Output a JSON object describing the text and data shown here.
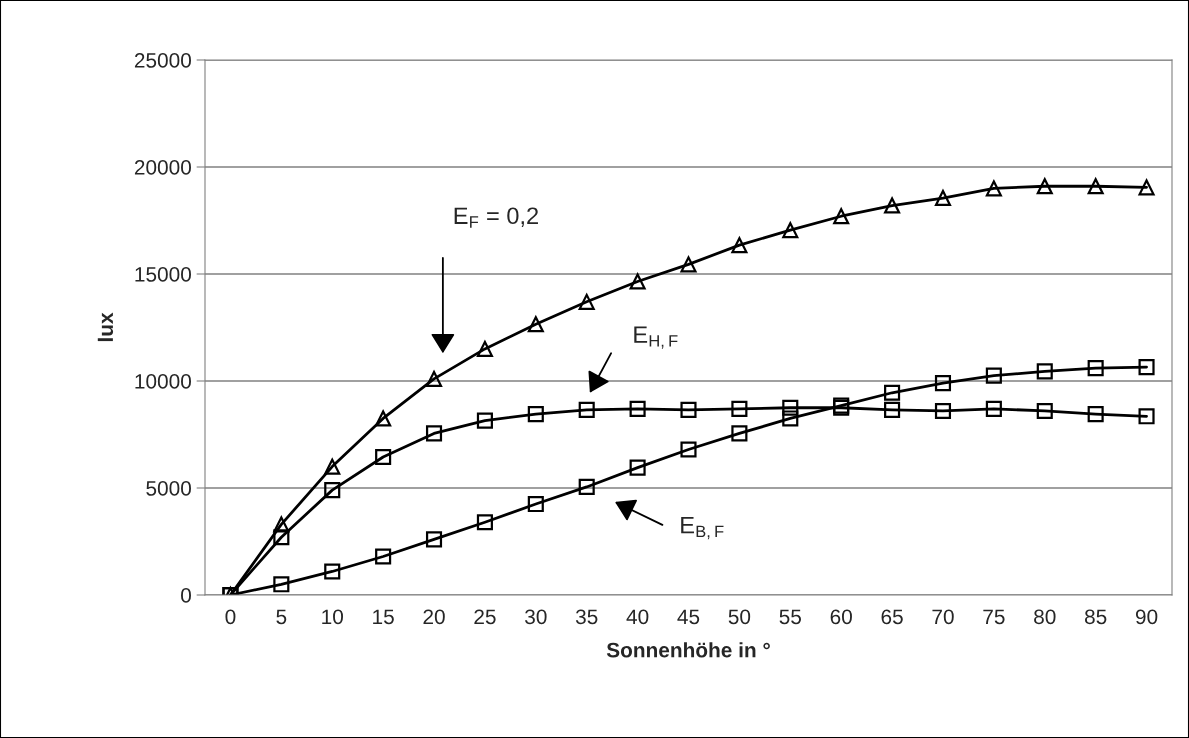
{
  "chart_data": {
    "type": "line",
    "xlabel": "Sonnenhöhe in °",
    "ylabel": "lux",
    "categories": [
      "0",
      "5",
      "10",
      "15",
      "20",
      "25",
      "30",
      "35",
      "40",
      "45",
      "50",
      "55",
      "60",
      "65",
      "70",
      "75",
      "80",
      "85",
      "90"
    ],
    "series": [
      {
        "color": "#000000",
        "marker": "triangle",
        "values": [
          0,
          3300,
          6000,
          8250,
          10100,
          11500,
          12650,
          13700,
          14650,
          15450,
          16350,
          17050,
          17700,
          18200,
          18550,
          19000,
          19100,
          19100,
          19050
        ]
      },
      {
        "color": "#000000",
        "marker": "square",
        "values": [
          0,
          2700,
          4900,
          6450,
          7550,
          8150,
          8450,
          8650,
          8700,
          8650,
          8700,
          8750,
          8750,
          8650,
          8600,
          8700,
          8600,
          8450,
          8350
        ]
      },
      {
        "color": "#000000",
        "marker": "square",
        "values": [
          0,
          500,
          1100,
          1800,
          2600,
          3400,
          4250,
          5050,
          5950,
          6800,
          7550,
          8250,
          8850,
          9450,
          9900,
          10250,
          10450,
          10600,
          10650
        ]
      }
    ],
    "ylim": [
      0,
      25000
    ],
    "yticks": [
      0,
      5000,
      10000,
      15000,
      20000,
      25000
    ],
    "grid": "y",
    "line_style": "solid",
    "annotations": [
      "E$_{F}$ = 0,2",
      "E$_{H,F}$",
      "E$_{B,F}$"
    ]
  }
}
